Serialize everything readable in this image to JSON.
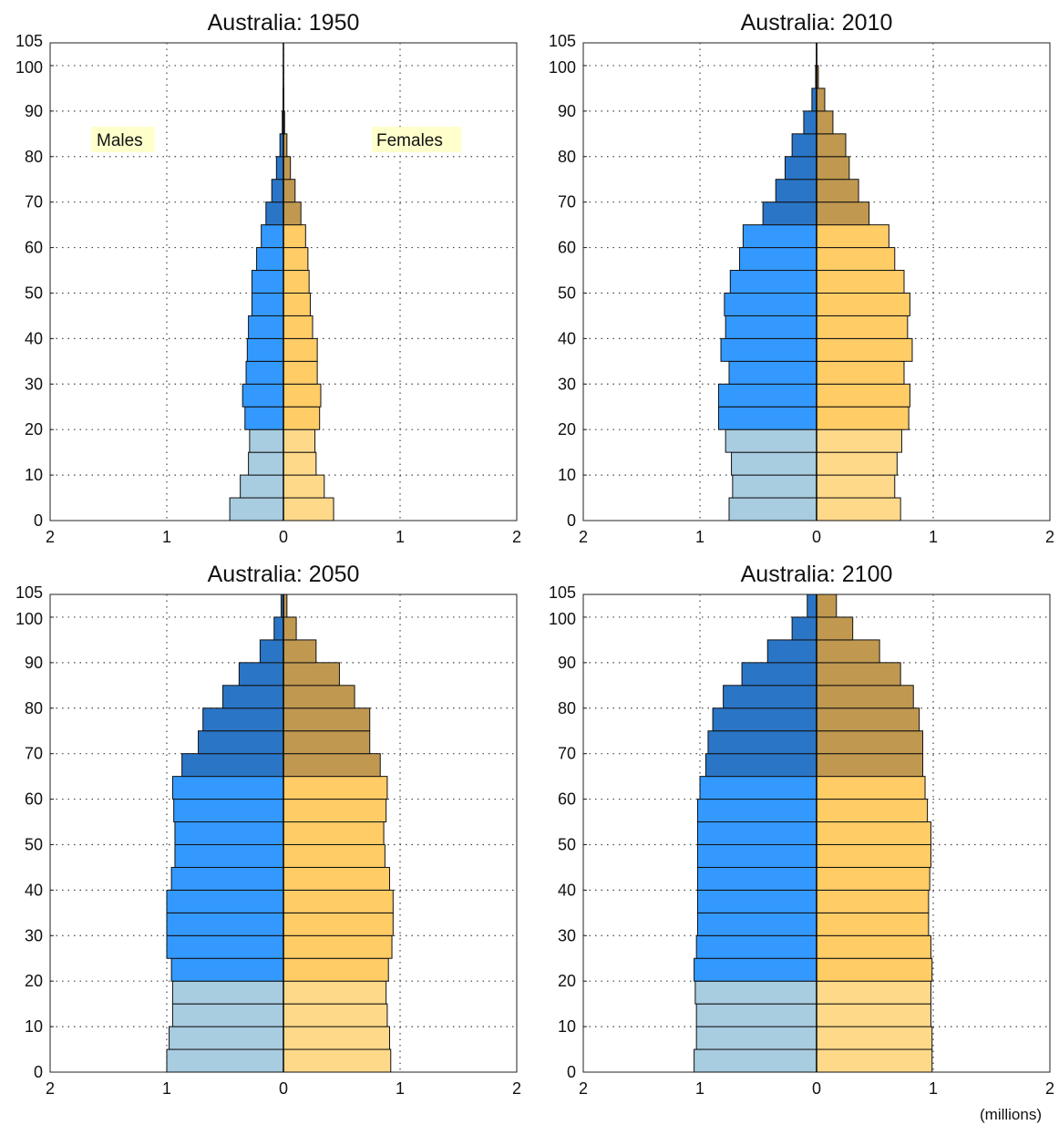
{
  "units_label": "(millions)",
  "legend": {
    "males": "Males",
    "females": "Females"
  },
  "colors": {
    "male_young": "#a8cce0",
    "male_working": "#3399ff",
    "male_old": "#2a75c6",
    "female_young": "#ffd98a",
    "female_working": "#ffcc66",
    "female_old": "#c09850",
    "grid": "#444444"
  },
  "chart_data": [
    {
      "type": "bar",
      "title": "Australia: 1950",
      "age_groups": [
        "0-4",
        "5-9",
        "10-14",
        "15-19",
        "20-24",
        "25-29",
        "30-34",
        "35-39",
        "40-44",
        "45-49",
        "50-54",
        "55-59",
        "60-64",
        "65-69",
        "70-74",
        "75-79",
        "80-84",
        "85-89",
        "90-94",
        "95-99",
        "100+"
      ],
      "males": [
        0.46,
        0.37,
        0.3,
        0.29,
        0.33,
        0.35,
        0.32,
        0.31,
        0.3,
        0.27,
        0.27,
        0.23,
        0.19,
        0.15,
        0.1,
        0.06,
        0.03,
        0.01,
        0.003,
        0.001,
        0.0
      ],
      "females": [
        0.43,
        0.35,
        0.28,
        0.27,
        0.31,
        0.32,
        0.29,
        0.29,
        0.25,
        0.23,
        0.22,
        0.21,
        0.19,
        0.15,
        0.1,
        0.06,
        0.03,
        0.01,
        0.003,
        0.001,
        0.0
      ],
      "xticks": [
        "2",
        "1",
        "0",
        "1",
        "2"
      ],
      "xlim": [
        -2,
        2
      ],
      "yticks": [
        "0",
        "10",
        "20",
        "30",
        "40",
        "50",
        "60",
        "70",
        "80",
        "90",
        "100",
        "105"
      ],
      "ylim": [
        0,
        105
      ]
    },
    {
      "type": "bar",
      "title": "Australia: 2010",
      "age_groups": [
        "0-4",
        "5-9",
        "10-14",
        "15-19",
        "20-24",
        "25-29",
        "30-34",
        "35-39",
        "40-44",
        "45-49",
        "50-54",
        "55-59",
        "60-64",
        "65-69",
        "70-74",
        "75-79",
        "80-84",
        "85-89",
        "90-94",
        "95-99",
        "100+"
      ],
      "males": [
        0.75,
        0.72,
        0.73,
        0.78,
        0.84,
        0.84,
        0.75,
        0.82,
        0.78,
        0.79,
        0.74,
        0.66,
        0.63,
        0.46,
        0.35,
        0.27,
        0.21,
        0.11,
        0.04,
        0.008,
        0.001
      ],
      "females": [
        0.72,
        0.67,
        0.69,
        0.73,
        0.79,
        0.8,
        0.75,
        0.82,
        0.78,
        0.8,
        0.75,
        0.67,
        0.62,
        0.45,
        0.36,
        0.28,
        0.25,
        0.14,
        0.07,
        0.015,
        0.002
      ],
      "xticks": [
        "2",
        "1",
        "0",
        "1",
        "2"
      ],
      "xlim": [
        -2,
        2
      ],
      "yticks": [
        "0",
        "10",
        "20",
        "30",
        "40",
        "50",
        "60",
        "70",
        "80",
        "90",
        "100",
        "105"
      ],
      "ylim": [
        0,
        105
      ]
    },
    {
      "type": "bar",
      "title": "Australia: 2050",
      "age_groups": [
        "0-4",
        "5-9",
        "10-14",
        "15-19",
        "20-24",
        "25-29",
        "30-34",
        "35-39",
        "40-44",
        "45-49",
        "50-54",
        "55-59",
        "60-64",
        "65-69",
        "70-74",
        "75-79",
        "80-84",
        "85-89",
        "90-94",
        "95-99",
        "100+"
      ],
      "males": [
        1.0,
        0.98,
        0.95,
        0.95,
        0.96,
        1.0,
        1.0,
        1.0,
        0.96,
        0.93,
        0.93,
        0.94,
        0.95,
        0.87,
        0.73,
        0.69,
        0.52,
        0.38,
        0.2,
        0.08,
        0.02
      ],
      "females": [
        0.92,
        0.91,
        0.89,
        0.88,
        0.9,
        0.93,
        0.94,
        0.94,
        0.91,
        0.87,
        0.86,
        0.88,
        0.89,
        0.83,
        0.74,
        0.74,
        0.61,
        0.48,
        0.28,
        0.11,
        0.03
      ],
      "xticks": [
        "2",
        "1",
        "0",
        "1",
        "2"
      ],
      "xlim": [
        -2,
        2
      ],
      "yticks": [
        "0",
        "10",
        "20",
        "30",
        "40",
        "50",
        "60",
        "70",
        "80",
        "90",
        "100",
        "105"
      ],
      "ylim": [
        0,
        105
      ]
    },
    {
      "type": "bar",
      "title": "Australia: 2100",
      "age_groups": [
        "0-4",
        "5-9",
        "10-14",
        "15-19",
        "20-24",
        "25-29",
        "30-34",
        "35-39",
        "40-44",
        "45-49",
        "50-54",
        "55-59",
        "60-64",
        "65-69",
        "70-74",
        "75-79",
        "80-84",
        "85-89",
        "90-94",
        "95-99",
        "100+"
      ],
      "males": [
        1.05,
        1.03,
        1.03,
        1.04,
        1.05,
        1.03,
        1.02,
        1.02,
        1.02,
        1.02,
        1.02,
        1.02,
        1.0,
        0.95,
        0.93,
        0.89,
        0.8,
        0.64,
        0.42,
        0.21,
        0.08
      ],
      "females": [
        0.99,
        0.99,
        0.98,
        0.98,
        0.99,
        0.98,
        0.96,
        0.96,
        0.97,
        0.98,
        0.98,
        0.95,
        0.93,
        0.91,
        0.91,
        0.88,
        0.83,
        0.72,
        0.54,
        0.31,
        0.17
      ],
      "xticks": [
        "2",
        "1",
        "0",
        "1",
        "2"
      ],
      "xlim": [
        -2,
        2
      ],
      "yticks": [
        "0",
        "10",
        "20",
        "30",
        "40",
        "50",
        "60",
        "70",
        "80",
        "90",
        "100",
        "105"
      ],
      "ylim": [
        0,
        105
      ]
    }
  ]
}
